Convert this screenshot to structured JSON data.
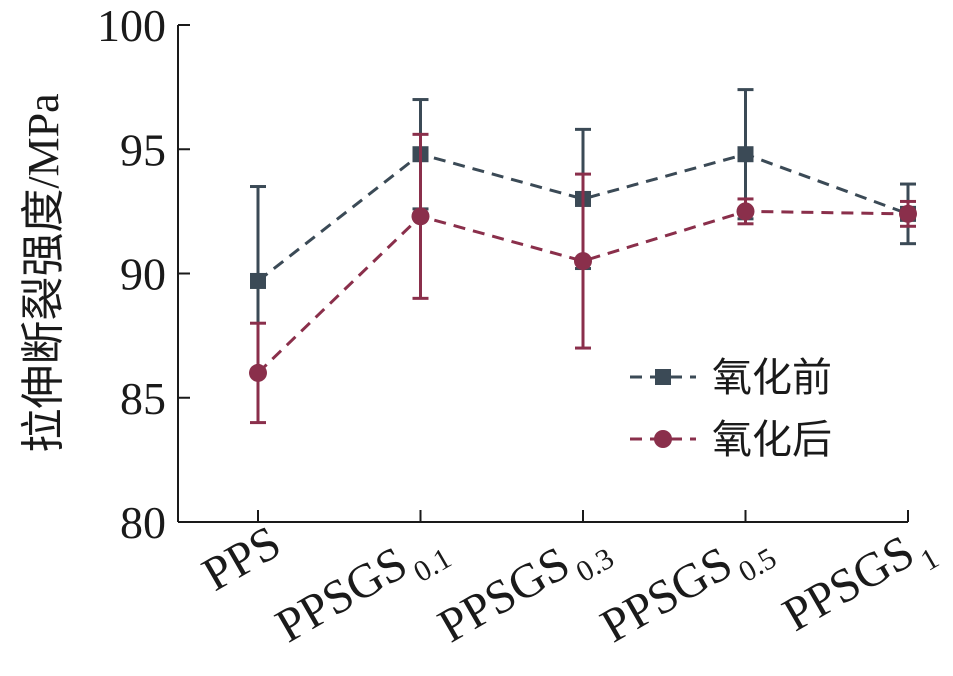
{
  "chart_data": {
    "type": "line",
    "title": "",
    "xlabel": "",
    "ylabel": "拉伸断裂强度/MPa",
    "ylim": [
      80,
      100
    ],
    "yticks": [
      80,
      85,
      90,
      95,
      100
    ],
    "grid": false,
    "legend_position": "right",
    "categories": [
      {
        "main": "PPS",
        "sub": ""
      },
      {
        "main": "PPSGS",
        "sub": "0.1"
      },
      {
        "main": "PPSGS",
        "sub": "0.3"
      },
      {
        "main": "PPSGS",
        "sub": "0.5"
      },
      {
        "main": "PPSGS",
        "sub": "1"
      }
    ],
    "series": [
      {
        "name": "氧化前",
        "color": "#3b4a56",
        "marker": "square",
        "line_style": "dashed",
        "values": [
          89.7,
          94.8,
          93.0,
          94.8,
          92.4
        ],
        "err_low": [
          3.8,
          2.2,
          2.8,
          2.6,
          1.2
        ],
        "err_high": [
          3.8,
          2.2,
          2.8,
          2.6,
          1.2
        ]
      },
      {
        "name": "氧化后",
        "color": "#8a2f4b",
        "marker": "circle",
        "line_style": "dashed",
        "values": [
          86.0,
          92.3,
          90.5,
          92.5,
          92.4
        ],
        "err_low": [
          2.0,
          3.3,
          3.5,
          0.5,
          0.5
        ],
        "err_high": [
          2.0,
          3.3,
          3.5,
          0.5,
          0.5
        ]
      }
    ]
  }
}
